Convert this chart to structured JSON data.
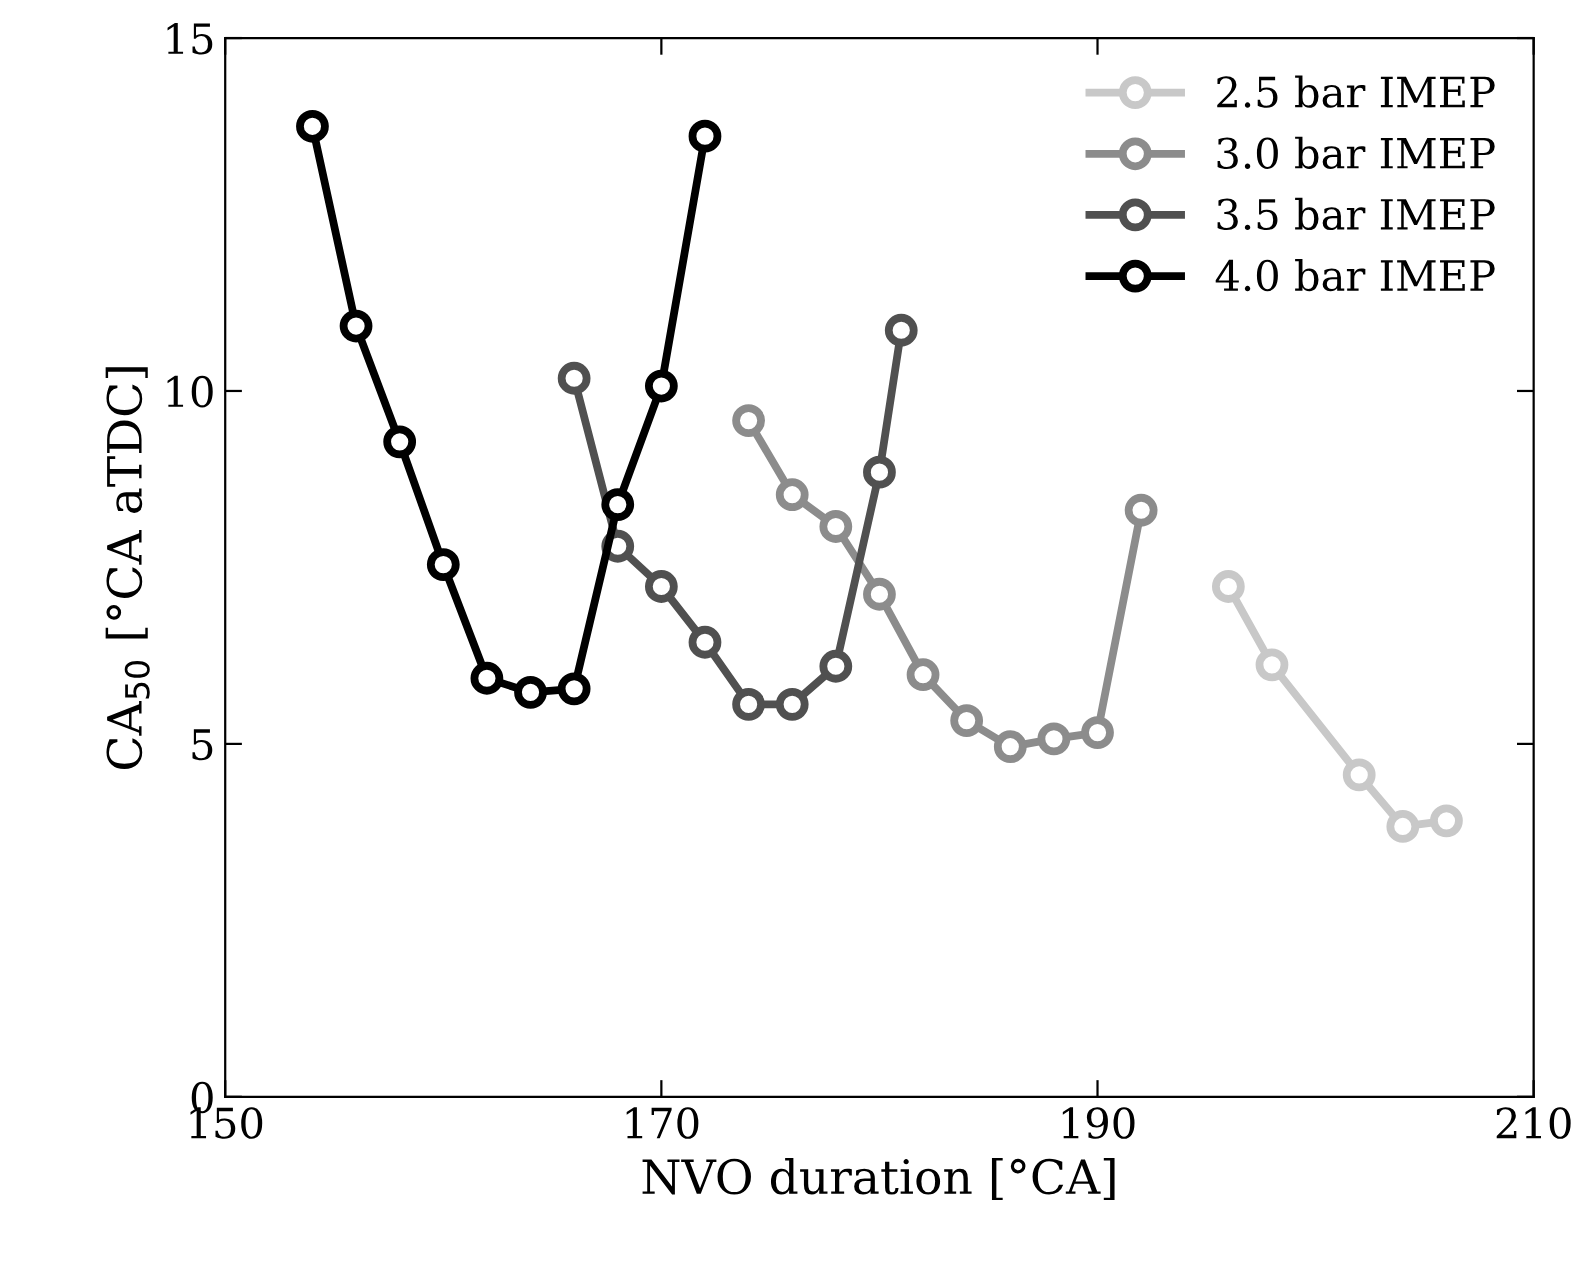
{
  "chart_data": {
    "type": "line",
    "xlabel": "NVO duration [°CA]",
    "ylabel": "CA$_{50}$ [°CA aTDC]",
    "xlim": [
      150,
      210
    ],
    "xticks": [
      150,
      170,
      190,
      210
    ],
    "ylim": [
      0,
      15
    ],
    "yticks": [
      0,
      5,
      10,
      15
    ],
    "grid": false,
    "legend": "top right",
    "marker": "circle",
    "line_style": "solid",
    "series": [
      {
        "name": "2.5 bar IMEP",
        "color": "#c8c8c8",
        "x": [
          196,
          198,
          202,
          204,
          206
        ],
        "values": [
          7.23,
          6.12,
          4.56,
          3.83,
          3.91
        ]
      },
      {
        "name": "3.0 bar IMEP",
        "color": "#8c8c8c",
        "x": [
          174,
          176,
          178,
          180,
          182,
          184,
          186,
          188,
          190,
          192
        ],
        "values": [
          9.58,
          8.53,
          8.08,
          7.12,
          5.98,
          5.33,
          4.96,
          5.07,
          5.16,
          8.31
        ]
      },
      {
        "name": "3.5 bar IMEP",
        "color": "#505050",
        "x": [
          166,
          168,
          170,
          172,
          174,
          176,
          178,
          180,
          181
        ],
        "values": [
          10.18,
          7.8,
          7.23,
          6.44,
          5.56,
          5.56,
          6.1,
          8.85,
          10.86
        ]
      },
      {
        "name": "4.0 bar IMEP",
        "color": "#000000",
        "x": [
          154,
          156,
          158,
          160,
          162,
          164,
          166,
          168,
          170,
          172
        ],
        "values": [
          13.75,
          10.92,
          9.28,
          7.54,
          5.93,
          5.73,
          5.78,
          8.39,
          10.07,
          13.61
        ]
      }
    ]
  }
}
